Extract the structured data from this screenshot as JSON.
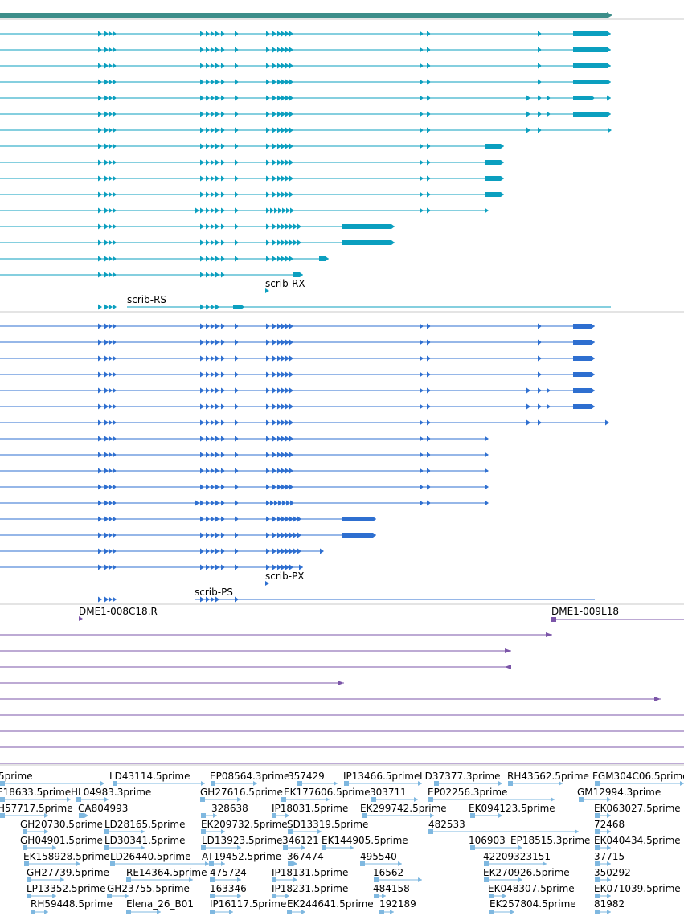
{
  "colors": {
    "gene_bar": "#3d8e8a",
    "transcript_cyan": "#0b9fbf",
    "transcript_blue": "#2e6fd0",
    "clone": "#7b55a8",
    "est": "#7fb8e0",
    "separator": "#c8c8c8",
    "label": "#000000"
  },
  "transcript_labels": [
    {
      "text": "scrib-RX",
      "group": "cyan",
      "row": 15
    },
    {
      "text": "scrib-RS",
      "group": "cyan",
      "row": 16
    },
    {
      "text": "scrib-PX",
      "group": "blue",
      "row": 15
    },
    {
      "text": "scrib-PS",
      "group": "blue",
      "row": 16
    }
  ],
  "clone_labels": [
    "DME1-008C18.R",
    "DME1-009L18"
  ],
  "est_labels": [
    "5prime",
    "LD43114.5prime",
    "EP08564.3prime",
    "357429",
    "IP13466.5prime",
    "LD37377.3prime",
    "RH43562.5prime",
    "FGM304C06.5prime",
    "E18633.5prime",
    "HL04983.3prime",
    "GH27616.5prime",
    "EK177606.5prime",
    "303711",
    "EP02256.3prime",
    "GM12994.3prime",
    "H57717.5prime",
    "CA804993",
    "328638",
    "IP18031.5prime",
    "EK299742.5prime",
    "EK094123.5prime",
    "EK063027.5prime",
    "GH20730.5prime",
    "LD28165.5prime",
    "EK209732.5prime",
    "SD13319.5prime",
    "482533",
    "72468",
    "GH04901.5prime",
    "LD30341.5prime",
    "LD13923.5prime",
    "346121",
    "EK144905.5prime",
    "106903",
    "EP18515.3prime",
    "EK040434.5prime",
    "EK158928.5prime",
    "LD26440.5prime",
    "AT19452.5prime",
    "367474",
    "495540",
    "42209323151",
    "37715",
    "GH27739.5prime",
    "RE14364.5prime",
    "475724",
    "IP18131.5prime",
    "16562",
    "EK270926.5prime",
    "350292",
    "LP13352.5prime",
    "GH23755.5prime",
    "163346",
    "IP18231.5prime",
    "484158",
    "EK048307.5prime",
    "EK071039.5prime",
    "RH59448.5prime",
    "Elena_26_B01",
    "IP16117.5prime",
    "EK244641.5prime",
    "192189",
    "EK257804.5prime",
    "81982"
  ]
}
